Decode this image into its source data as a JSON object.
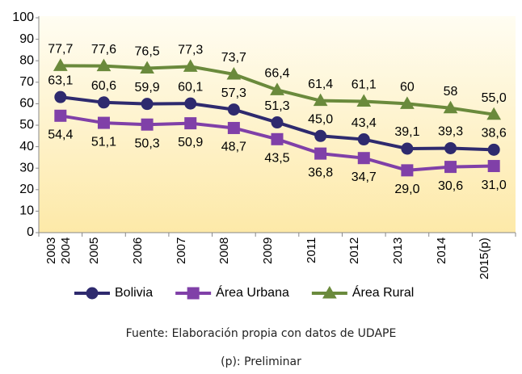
{
  "chart_data": {
    "type": "line",
    "categories": [
      "2003 2004",
      "2005",
      "2006",
      "2007",
      "2008",
      "2009",
      "2011",
      "2012",
      "2013",
      "2014",
      "2015(p)"
    ],
    "series": [
      {
        "name": "Bolivia",
        "color": "#2e2a6e",
        "marker": "circle",
        "values": [
          63.1,
          60.6,
          59.9,
          60.1,
          57.3,
          51.3,
          45.0,
          43.4,
          39.1,
          39.3,
          38.6
        ],
        "value_labels": [
          "63,1",
          "60,6",
          "59,9",
          "60,1",
          "57,3",
          "51,3",
          "45,0",
          "43,4",
          "39,1",
          "39,3",
          "38,6"
        ]
      },
      {
        "name": "Área Urbana",
        "color": "#8040a8",
        "marker": "square",
        "values": [
          54.4,
          51.1,
          50.3,
          50.9,
          48.7,
          43.5,
          36.8,
          34.7,
          29.0,
          30.6,
          31.0
        ],
        "value_labels": [
          "54,4",
          "51,1",
          "50,3",
          "50,9",
          "48,7",
          "43,5",
          "36,8",
          "34,7",
          "29,0",
          "30,6",
          "31,0"
        ]
      },
      {
        "name": "Área Rural",
        "color": "#6a8a3c",
        "marker": "triangle",
        "values": [
          77.7,
          77.6,
          76.5,
          77.3,
          73.7,
          66.4,
          61.4,
          61.1,
          60,
          58,
          55.0
        ],
        "value_labels": [
          "77,7",
          "77,6",
          "76,5",
          "77,3",
          "73,7",
          "66,4",
          "61,4",
          "61,1",
          "60",
          "58",
          "55,0"
        ]
      }
    ],
    "ylim": [
      0,
      100
    ],
    "yticks": [
      0,
      10,
      20,
      30,
      40,
      50,
      60,
      70,
      80,
      90,
      100
    ],
    "grid": false,
    "source": "Fuente: Elaboración propia con datos de UDAPE",
    "note": "(p): Preliminar"
  }
}
